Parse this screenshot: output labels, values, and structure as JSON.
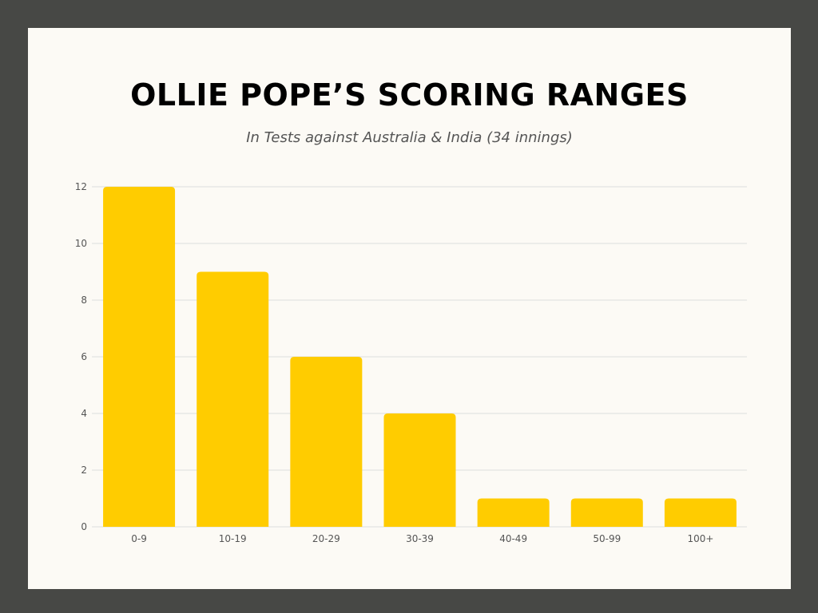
{
  "chart_data": {
    "type": "bar",
    "title": "OLLIE POPE’S SCORING RANGES",
    "subtitle": "In Tests against Australia & India (34 innings)",
    "xlabel": "",
    "ylabel": "",
    "categories": [
      "0-9",
      "10-19",
      "20-29",
      "30-39",
      "40-49",
      "50-99",
      "100+"
    ],
    "values": [
      12,
      9,
      6,
      4,
      1,
      1,
      1
    ],
    "ylim": [
      0,
      12
    ],
    "yticks": [
      0,
      2,
      4,
      6,
      8,
      10,
      12
    ],
    "grid": true,
    "legend": "none",
    "colors": {
      "bar": "#ffcc00",
      "grid": "#dddddd",
      "background": "#fcfaf5",
      "frame": "#474845"
    }
  }
}
